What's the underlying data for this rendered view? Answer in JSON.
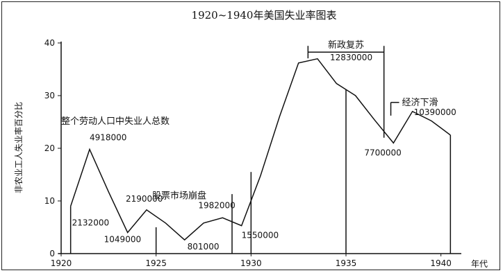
{
  "chart_data": {
    "type": "line",
    "title": "1920~1940年美国失业率图表",
    "ylabel": "非农业工人失业率百分比",
    "xlabel": "年代",
    "xlim": [
      1920,
      1941
    ],
    "ylim": [
      0,
      40
    ],
    "x_ticks": [
      "1920",
      "1925",
      "1930",
      "1935",
      "1940"
    ],
    "y_ticks": [
      "0",
      "10",
      "20",
      "30",
      "40"
    ],
    "grid": false,
    "series_label": "整个劳动人口中失业人总数",
    "points": [
      {
        "x": 1920.5,
        "y": 9.0
      },
      {
        "x": 1921.5,
        "y": 19.8
      },
      {
        "x": 1922.5,
        "y": 11.7
      },
      {
        "x": 1923.5,
        "y": 4.0
      },
      {
        "x": 1924.5,
        "y": 8.3
      },
      {
        "x": 1925.5,
        "y": 5.8
      },
      {
        "x": 1926.5,
        "y": 2.6
      },
      {
        "x": 1927.5,
        "y": 5.8
      },
      {
        "x": 1928.5,
        "y": 6.8
      },
      {
        "x": 1929.5,
        "y": 5.3
      },
      {
        "x": 1930.5,
        "y": 14.8
      },
      {
        "x": 1931.5,
        "y": 26.0
      },
      {
        "x": 1932.5,
        "y": 36.2
      },
      {
        "x": 1933.5,
        "y": 37.0
      },
      {
        "x": 1934.5,
        "y": 32.3
      },
      {
        "x": 1935.5,
        "y": 30.0
      },
      {
        "x": 1936.5,
        "y": 25.4
      },
      {
        "x": 1937.5,
        "y": 21.0
      },
      {
        "x": 1938.5,
        "y": 27.0
      },
      {
        "x": 1939.5,
        "y": 25.2
      },
      {
        "x": 1940.5,
        "y": 22.5
      }
    ],
    "data_labels": [
      {
        "text": "4918000",
        "x": 1921.5,
        "y": 19.8
      },
      {
        "text": "2132000",
        "x": 1920.5,
        "y": 9.0
      },
      {
        "text": "1049000",
        "x": 1923.5,
        "y": 4.0
      },
      {
        "text": "2190000",
        "x": 1924.5,
        "y": 8.3
      },
      {
        "text": "801000",
        "x": 1926.5,
        "y": 2.6
      },
      {
        "text": "1982000",
        "x": 1928.5,
        "y": 6.8
      },
      {
        "text": "1550000",
        "x": 1929.5,
        "y": 5.3
      },
      {
        "text": "12830000",
        "x": 1933.5,
        "y": 37.0
      },
      {
        "text": "7700000",
        "x": 1937.5,
        "y": 21.0
      },
      {
        "text": "10390000",
        "x": 1938.5,
        "y": 27.0
      }
    ],
    "annotations": [
      {
        "text": "股票市场崩盘",
        "x": 1929,
        "y": 11.5
      },
      {
        "text": "新政复苏",
        "x_start": 1933,
        "x_end": 1937,
        "y": 40.5
      },
      {
        "text": "经济下滑",
        "x": 1937.8,
        "y": 29.5
      }
    ],
    "markers": [
      1920.5,
      1925,
      1929,
      1930,
      1935,
      1940.5
    ]
  }
}
